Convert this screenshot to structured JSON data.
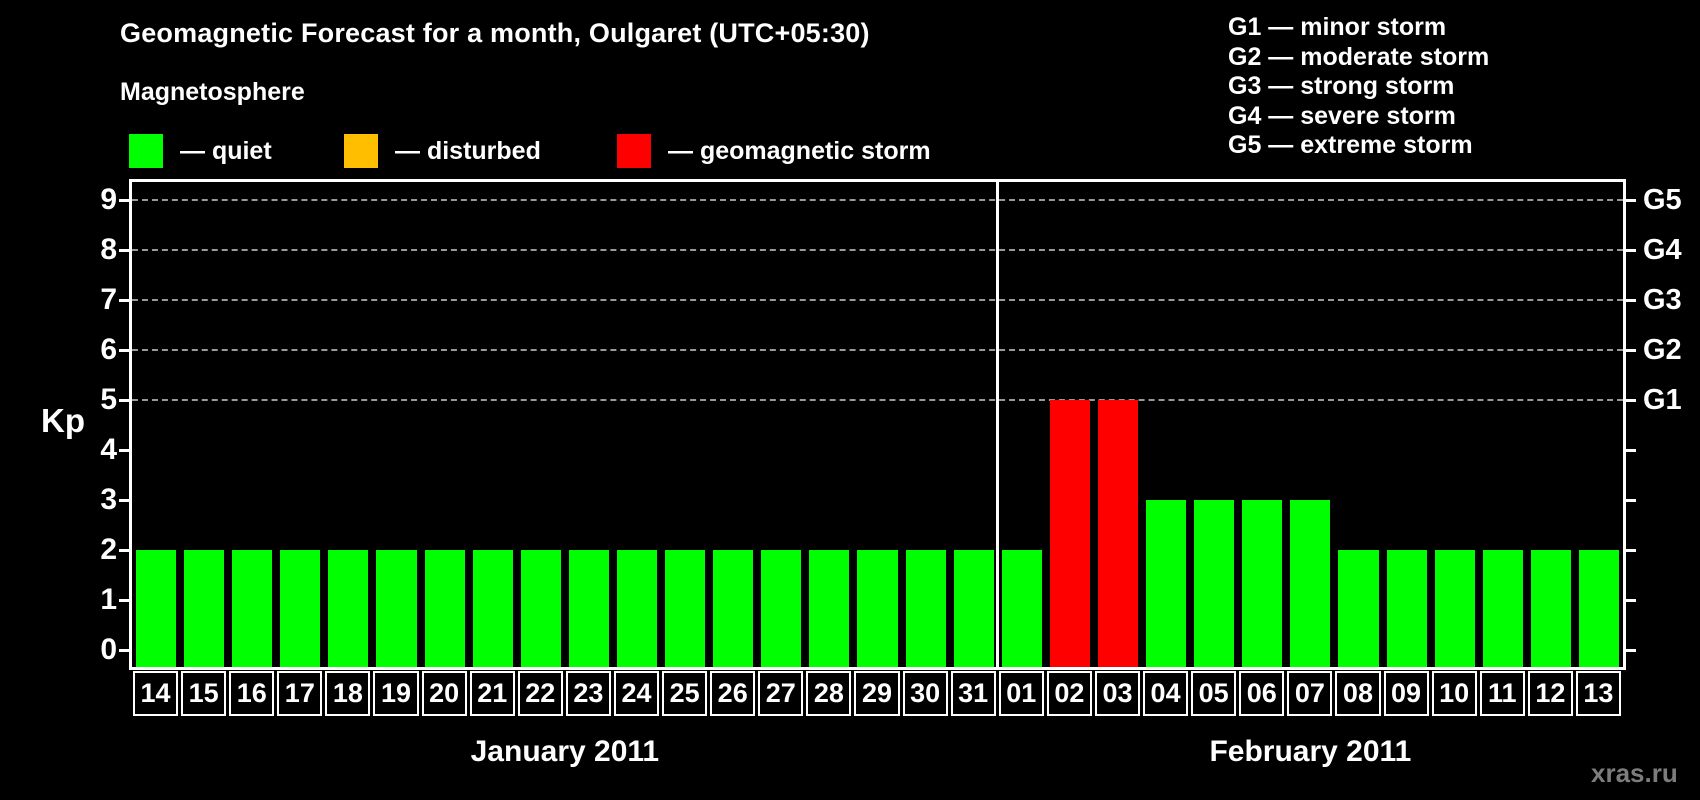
{
  "title": "Geomagnetic Forecast for a month, Oulgaret (UTC+05:30)",
  "legend": {
    "heading": "Magnetosphere",
    "items": [
      {
        "key": "quiet",
        "label": "— quiet"
      },
      {
        "key": "disturbed",
        "label": "— disturbed"
      },
      {
        "key": "storm",
        "label": "— geomagnetic storm"
      }
    ]
  },
  "g_storm_legend": [
    "G1 — minor storm",
    "G2 — moderate storm",
    "G3 — strong storm",
    "G4 — severe storm",
    "G5 — extreme storm"
  ],
  "watermark": "xras.ru",
  "chart_data": {
    "type": "bar",
    "title": "Geomagnetic Forecast for a month, Oulgaret (UTC+05:30)",
    "xlabel": "",
    "ylabel": "Kp",
    "ylim": [
      0,
      9
    ],
    "yticks": [
      0,
      1,
      2,
      3,
      4,
      5,
      6,
      7,
      8,
      9
    ],
    "gridlines_at_kp": [
      5,
      6,
      7,
      8,
      9
    ],
    "grid": "dashed horizontal at storm levels only",
    "legend_position": "top-left",
    "right_axis": [
      {
        "kp": 5,
        "label": "G1"
      },
      {
        "kp": 6,
        "label": "G2"
      },
      {
        "kp": 7,
        "label": "G3"
      },
      {
        "kp": 8,
        "label": "G4"
      },
      {
        "kp": 9,
        "label": "G5"
      }
    ],
    "months": [
      {
        "label": "January 2011",
        "day_count": 18
      },
      {
        "label": "February 2011",
        "day_count": 13
      }
    ],
    "categories": [
      "14",
      "15",
      "16",
      "17",
      "18",
      "19",
      "20",
      "21",
      "22",
      "23",
      "24",
      "25",
      "26",
      "27",
      "28",
      "29",
      "30",
      "31",
      "01",
      "02",
      "03",
      "04",
      "05",
      "06",
      "07",
      "08",
      "09",
      "10",
      "11",
      "12",
      "13"
    ],
    "values": [
      2,
      2,
      2,
      2,
      2,
      2,
      2,
      2,
      2,
      2,
      2,
      2,
      2,
      2,
      2,
      2,
      2,
      2,
      2,
      5,
      5,
      3,
      3,
      3,
      3,
      2,
      2,
      2,
      2,
      2,
      2
    ],
    "statuses": [
      "quiet",
      "quiet",
      "quiet",
      "quiet",
      "quiet",
      "quiet",
      "quiet",
      "quiet",
      "quiet",
      "quiet",
      "quiet",
      "quiet",
      "quiet",
      "quiet",
      "quiet",
      "quiet",
      "quiet",
      "quiet",
      "quiet",
      "storm",
      "storm",
      "quiet",
      "quiet",
      "quiet",
      "quiet",
      "quiet",
      "quiet",
      "quiet",
      "quiet",
      "quiet",
      "quiet"
    ],
    "status_colors": {
      "quiet": "#00ff00",
      "disturbed": "#ffbf00",
      "storm": "#ff0000"
    }
  }
}
